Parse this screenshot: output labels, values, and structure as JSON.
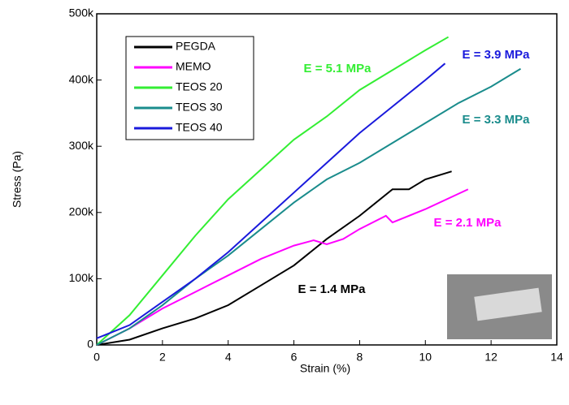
{
  "chart_data": {
    "type": "line",
    "xlabel": "Strain (%)",
    "ylabel": "Stress (Pa)",
    "xlim": [
      0,
      14
    ],
    "xticks": [
      0,
      2,
      4,
      6,
      8,
      10,
      12,
      14
    ],
    "ylim": [
      0,
      500000
    ],
    "yticks": [
      0,
      {
        "value": 100000,
        "label": "100k"
      },
      {
        "value": 200000,
        "label": "200k"
      },
      {
        "value": 300000,
        "label": "300k"
      },
      {
        "value": 400000,
        "label": "400k"
      },
      {
        "value": 500000,
        "label": "500k"
      }
    ],
    "legend": "upper left",
    "series": [
      {
        "name": "PEGDA",
        "color": "#000000",
        "x": [
          0,
          1,
          2,
          3,
          4,
          5,
          6,
          7,
          8,
          9,
          9.5,
          10,
          10.8
        ],
        "values": [
          0,
          8000,
          25000,
          40000,
          60000,
          90000,
          120000,
          160000,
          195000,
          235000,
          235000,
          250000,
          262000
        ]
      },
      {
        "name": "MEMO",
        "color": "#ff00ff",
        "x": [
          0,
          1,
          2,
          3,
          4,
          5,
          6,
          6.6,
          7,
          7.5,
          8,
          8.8,
          9,
          10,
          11.3
        ],
        "values": [
          0,
          25000,
          55000,
          80000,
          105000,
          130000,
          150000,
          158000,
          152000,
          160000,
          175000,
          195000,
          185000,
          205000,
          235000
        ]
      },
      {
        "name": "TEOS 20",
        "color": "#33ee33",
        "x": [
          0,
          1,
          2,
          3,
          4,
          5,
          6,
          7,
          8,
          9,
          10,
          10.7
        ],
        "values": [
          0,
          45000,
          105000,
          165000,
          220000,
          265000,
          310000,
          345000,
          385000,
          415000,
          445000,
          465000
        ]
      },
      {
        "name": "TEOS 30",
        "color": "#1a8c8c",
        "x": [
          0,
          1,
          2,
          3,
          4,
          5,
          6,
          7,
          8,
          9,
          10,
          11,
          12,
          12.9
        ],
        "values": [
          0,
          25000,
          60000,
          100000,
          135000,
          175000,
          215000,
          250000,
          275000,
          305000,
          335000,
          365000,
          390000,
          417000
        ]
      },
      {
        "name": "TEOS 40",
        "color": "#1a1adc",
        "x": [
          0,
          1,
          2,
          3,
          4,
          5,
          6,
          7,
          8,
          9,
          10,
          10.6
        ],
        "values": [
          10000,
          30000,
          65000,
          100000,
          140000,
          185000,
          230000,
          275000,
          320000,
          360000,
          400000,
          425000
        ]
      }
    ],
    "annotations": [
      "E = 1.4 MPa",
      "E = 2.1 MPa",
      "E = 5.1 MPa",
      "E = 3.3 MPa",
      "E = 3.9 MPa"
    ]
  }
}
